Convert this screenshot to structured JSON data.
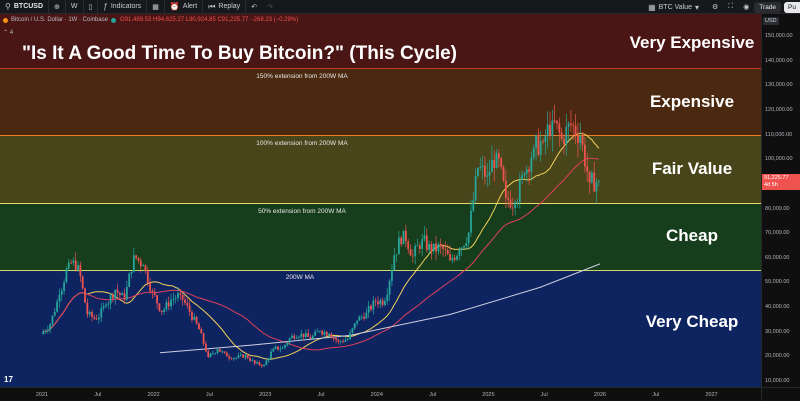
{
  "toolbar": {
    "symbol": "BTCUSD",
    "interval": "W",
    "indicators_label": "Indicators",
    "alert_label": "Alert",
    "replay_label": "Replay",
    "compare_value": "BTC Value",
    "trade_label": "Trade",
    "publish_label": "Pu"
  },
  "legend": {
    "title": "Bitcoin / U.S. Dollar · 1W · Coinbase",
    "ohlc": "O91,489.53 H94,625.27 L90,924.85 C91,225.77 −268.23 (−0.29%)",
    "collapse_count": "4"
  },
  "headline": "\"Is It A Good Time To Buy Bitcoin?\" (This Cycle)",
  "zones": [
    {
      "label": "Very Expensive",
      "color": "#4a1515"
    },
    {
      "label": "Expensive",
      "color": "#4a2910"
    },
    {
      "label": "Fair Value",
      "color": "#48451a"
    },
    {
      "label": "Cheap",
      "color": "#163d1c"
    },
    {
      "label": "Very Cheap",
      "color": "#0e2460"
    }
  ],
  "extension_labels": {
    "ext150": "150% extension from 200W MA",
    "ext100": "100% extension from 200W MA",
    "ext50": "50% extension from 200W MA",
    "ma200": "200W MA"
  },
  "price_axis": {
    "currency": "USD",
    "ticks": [
      "150,000.00",
      "140,000.00",
      "130,000.00",
      "120,000.00",
      "110,000.00",
      "100,000.00",
      "90,000.00",
      "80,000.00",
      "70,000.00",
      "60,000.00",
      "50,000.00",
      "40,000.00",
      "30,000.00",
      "20,000.00",
      "10,000.00"
    ],
    "current_price": "91,225.77",
    "countdown": "4d 5h"
  },
  "time_axis": {
    "ticks": [
      "2021",
      "Jul",
      "2022",
      "Jul",
      "2023",
      "Jul",
      "2024",
      "Jul",
      "2025",
      "Jul",
      "2026",
      "Jul",
      "2027"
    ]
  },
  "colors": {
    "up": "#26a69a",
    "down": "#ef5350",
    "ma_yellow": "#f2d15a",
    "ma_red": "#e0405a",
    "ma_white": "#cfcfe0"
  },
  "chart_data": {
    "type": "candlestick",
    "symbol": "BTCUSD",
    "interval": "1W",
    "ylim": [
      8000,
      157000
    ],
    "closes_monthly": [
      {
        "t": "2021-01",
        "close": 33000
      },
      {
        "t": "2021-02",
        "close": 45000
      },
      {
        "t": "2021-03",
        "close": 58000
      },
      {
        "t": "2021-04",
        "close": 57000
      },
      {
        "t": "2021-05",
        "close": 37000
      },
      {
        "t": "2021-06",
        "close": 35000
      },
      {
        "t": "2021-07",
        "close": 41000
      },
      {
        "t": "2021-08",
        "close": 47000
      },
      {
        "t": "2021-09",
        "close": 43000
      },
      {
        "t": "2021-10",
        "close": 61000
      },
      {
        "t": "2021-11",
        "close": 57000
      },
      {
        "t": "2021-12",
        "close": 46000
      },
      {
        "t": "2022-01",
        "close": 38000
      },
      {
        "t": "2022-02",
        "close": 43000
      },
      {
        "t": "2022-03",
        "close": 45000
      },
      {
        "t": "2022-04",
        "close": 38000
      },
      {
        "t": "2022-05",
        "close": 31000
      },
      {
        "t": "2022-06",
        "close": 19800
      },
      {
        "t": "2022-07",
        "close": 23000
      },
      {
        "t": "2022-08",
        "close": 20000
      },
      {
        "t": "2022-09",
        "close": 19400
      },
      {
        "t": "2022-10",
        "close": 20500
      },
      {
        "t": "2022-11",
        "close": 17100
      },
      {
        "t": "2022-12",
        "close": 16500
      },
      {
        "t": "2023-01",
        "close": 23100
      },
      {
        "t": "2023-02",
        "close": 23500
      },
      {
        "t": "2023-03",
        "close": 28400
      },
      {
        "t": "2023-04",
        "close": 29200
      },
      {
        "t": "2023-05",
        "close": 27200
      },
      {
        "t": "2023-06",
        "close": 30400
      },
      {
        "t": "2023-07",
        "close": 29200
      },
      {
        "t": "2023-08",
        "close": 26000
      },
      {
        "t": "2023-09",
        "close": 27000
      },
      {
        "t": "2023-10",
        "close": 34500
      },
      {
        "t": "2023-11",
        "close": 37700
      },
      {
        "t": "2023-12",
        "close": 42300
      },
      {
        "t": "2024-01",
        "close": 42500
      },
      {
        "t": "2024-02",
        "close": 61000
      },
      {
        "t": "2024-03",
        "close": 71000
      },
      {
        "t": "2024-04",
        "close": 60600
      },
      {
        "t": "2024-05",
        "close": 67500
      },
      {
        "t": "2024-06",
        "close": 62700
      },
      {
        "t": "2024-07",
        "close": 64600
      },
      {
        "t": "2024-08",
        "close": 59000
      },
      {
        "t": "2024-09",
        "close": 63300
      },
      {
        "t": "2024-10",
        "close": 70200
      },
      {
        "t": "2024-11",
        "close": 96400
      },
      {
        "t": "2024-12",
        "close": 93400
      },
      {
        "t": "2025-01",
        "close": 102400
      },
      {
        "t": "2025-02",
        "close": 84300
      },
      {
        "t": "2025-03",
        "close": 82500
      },
      {
        "t": "2025-04",
        "close": 94200
      },
      {
        "t": "2025-05",
        "close": 104600
      },
      {
        "t": "2025-06",
        "close": 107100
      },
      {
        "t": "2025-07",
        "close": 115700
      },
      {
        "t": "2025-08",
        "close": 108200
      },
      {
        "t": "2025-09",
        "close": 114000
      },
      {
        "t": "2025-10",
        "close": 109500
      },
      {
        "t": "2025-11",
        "close": 90500
      },
      {
        "t": "2025-12",
        "close": 91225.77
      }
    ]
  }
}
